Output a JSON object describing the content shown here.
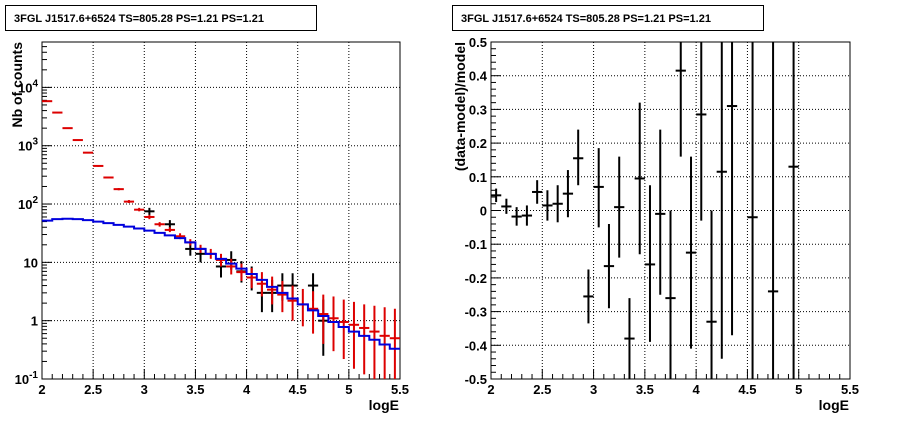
{
  "chart_data": [
    {
      "type": "line",
      "title": "3FGL J1517.6+6524 TS=805.28 PS=1.21 PS=1.21",
      "xlabel": "logE",
      "ylabel": "Nb of counts",
      "xlim": [
        2,
        5.5
      ],
      "ylim": [
        0.1,
        60000
      ],
      "log_y": true,
      "grid": true,
      "x_ticks": [
        "2",
        "2.5",
        "3",
        "3.5",
        "4",
        "4.5",
        "5",
        "5.5"
      ],
      "y_ticks": [
        {
          "v": 0.1,
          "t": "10",
          "s": "-1"
        },
        {
          "v": 1,
          "t": "1",
          "s": ""
        },
        {
          "v": 10,
          "t": "10",
          "s": ""
        },
        {
          "v": 100,
          "t": "10",
          "s": "2"
        },
        {
          "v": 1000,
          "t": "10",
          "s": "3"
        },
        {
          "v": 10000,
          "t": "10",
          "s": "4"
        }
      ],
      "bin_width": 0.1,
      "series": [
        {
          "color": "#000000",
          "style": "errorbar",
          "points": [
            [
              3.05,
              75,
              65,
              86
            ],
            [
              3.25,
              45,
              38,
              53
            ],
            [
              3.45,
              17,
              13,
              22
            ],
            [
              3.55,
              14,
              10,
              18.5
            ],
            [
              3.75,
              8.5,
              5.5,
              12.5
            ],
            [
              3.85,
              11,
              7.5,
              15.5
            ],
            [
              3.95,
              7,
              4.5,
              10.5
            ],
            [
              4.05,
              5.5,
              3.3,
              8.5
            ],
            [
              4.15,
              3,
              1.4,
              5
            ],
            [
              4.25,
              3,
              1.4,
              5
            ],
            [
              4.35,
              4,
              2.2,
              6.5
            ],
            [
              4.45,
              4,
              2.2,
              6.5
            ],
            [
              4.65,
              4,
              2.2,
              6.5
            ],
            [
              4.75,
              1,
              0.25,
              2.3
            ]
          ]
        },
        {
          "color": "#dd0000",
          "style": "errorbar",
          "points": [
            [
              2.05,
              5800,
              5700,
              5900
            ],
            [
              2.15,
              3700,
              3650,
              3750
            ],
            [
              2.25,
              2000,
              1970,
              2030
            ],
            [
              2.35,
              1250,
              1220,
              1280
            ],
            [
              2.45,
              760,
              740,
              780
            ],
            [
              2.55,
              450,
              435,
              465
            ],
            [
              2.65,
              285,
              275,
              295
            ],
            [
              2.75,
              180,
              172,
              188
            ],
            [
              2.85,
              110,
              104,
              117
            ],
            [
              2.95,
              80,
              75,
              86
            ],
            [
              3.05,
              60,
              55,
              65
            ],
            [
              3.15,
              45,
              41,
              49
            ],
            [
              3.25,
              36,
              33,
              40
            ],
            [
              3.35,
              28,
              25,
              31.5
            ],
            [
              3.45,
              22,
              19.5,
              25
            ],
            [
              3.55,
              17,
              14.5,
              20
            ],
            [
              3.65,
              14,
              11.5,
              17
            ],
            [
              3.75,
              11,
              8.5,
              14
            ],
            [
              3.85,
              8.5,
              6.2,
              11.5
            ],
            [
              3.95,
              6.8,
              4.8,
              9.5
            ],
            [
              4.05,
              5.5,
              3.6,
              8
            ],
            [
              4.15,
              4.3,
              2.6,
              6.8
            ],
            [
              4.25,
              3.4,
              1.9,
              5.7
            ],
            [
              4.35,
              2.8,
              1.4,
              4.8
            ],
            [
              4.45,
              2.2,
              1.0,
              4.0
            ],
            [
              4.55,
              1.9,
              0.8,
              3.5
            ],
            [
              4.65,
              1.6,
              0.6,
              3.2
            ],
            [
              4.75,
              1.3,
              0.4,
              2.8
            ],
            [
              4.85,
              1.1,
              0.3,
              2.6
            ],
            [
              4.95,
              0.95,
              0.22,
              2.3
            ],
            [
              5.05,
              0.85,
              0.15,
              2.1
            ],
            [
              5.15,
              0.75,
              0.12,
              1.9
            ],
            [
              5.25,
              0.65,
              0.1,
              1.8
            ],
            [
              5.35,
              0.55,
              0.1,
              1.7
            ],
            [
              5.45,
              0.5,
              0.1,
              1.6
            ]
          ]
        },
        {
          "color": "#0000dd",
          "style": "step",
          "edges": [
            2.0,
            2.1,
            2.2,
            2.3,
            2.4,
            2.5,
            2.6,
            2.7,
            2.8,
            2.9,
            3.0,
            3.1,
            3.2,
            3.3,
            3.4,
            3.5,
            3.6,
            3.7,
            3.8,
            3.9,
            4.0,
            4.1,
            4.2,
            4.3,
            4.4,
            4.5,
            4.6,
            4.7,
            4.8,
            4.9,
            5.0,
            5.1,
            5.2,
            5.3,
            5.4,
            5.5
          ],
          "values": [
            52,
            55,
            56,
            55,
            53,
            50,
            47,
            44,
            41,
            38,
            35,
            32,
            29,
            26,
            22,
            17,
            14,
            11.5,
            9.5,
            7.8,
            6.3,
            5.0,
            3.8,
            3.0,
            2.4,
            1.9,
            1.5,
            1.2,
            0.95,
            0.78,
            0.65,
            0.55,
            0.47,
            0.39,
            0.33
          ]
        }
      ]
    },
    {
      "type": "scatter",
      "title": "3FGL J1517.6+6524 TS=805.28 PS=1.21 PS=1.21",
      "xlabel": "logE",
      "ylabel": "(data-model)/model",
      "xlim": [
        2,
        5.5
      ],
      "ylim": [
        -0.5,
        0.5
      ],
      "grid": true,
      "x_ticks": [
        "2",
        "2.5",
        "3",
        "3.5",
        "4",
        "4.5",
        "5",
        "5.5"
      ],
      "y_ticks": [
        "-0.5",
        "-0.4",
        "-0.3",
        "-0.2",
        "-0.1",
        "0",
        "0.1",
        "0.2",
        "0.3",
        "0.4",
        "0.5"
      ],
      "bin_width": 0.1,
      "series": [
        {
          "color": "#000000",
          "style": "errorbar",
          "points": [
            [
              2.05,
              0.045,
              0.025,
              0.065
            ],
            [
              2.15,
              0.012,
              -0.01,
              0.035
            ],
            [
              2.25,
              -0.018,
              -0.045,
              0.01
            ],
            [
              2.35,
              -0.015,
              -0.045,
              0.015
            ],
            [
              2.45,
              0.055,
              0.02,
              0.09
            ],
            [
              2.55,
              0.015,
              -0.03,
              0.06
            ],
            [
              2.65,
              0.02,
              -0.035,
              0.075
            ],
            [
              2.75,
              0.05,
              -0.02,
              0.12
            ],
            [
              2.85,
              0.155,
              0.075,
              0.24
            ],
            [
              2.95,
              -0.255,
              -0.335,
              -0.175
            ],
            [
              3.05,
              0.07,
              -0.05,
              0.185
            ],
            [
              3.15,
              -0.165,
              -0.29,
              -0.04
            ],
            [
              3.25,
              0.01,
              -0.14,
              0.16
            ],
            [
              3.35,
              -0.38,
              -0.5,
              -0.26
            ],
            [
              3.45,
              0.095,
              -0.13,
              0.32
            ],
            [
              3.55,
              -0.16,
              -0.39,
              0.075
            ],
            [
              3.65,
              -0.01,
              -0.25,
              0.24
            ],
            [
              3.75,
              -0.26,
              -0.5,
              0.0
            ],
            [
              3.85,
              0.415,
              0.16,
              0.5
            ],
            [
              3.95,
              -0.125,
              -0.41,
              0.16
            ],
            [
              4.05,
              0.285,
              -0.03,
              0.5
            ],
            [
              4.15,
              -0.33,
              -0.5,
              0.0
            ],
            [
              4.25,
              0.115,
              -0.44,
              0.5
            ],
            [
              4.35,
              0.31,
              -0.37,
              0.5
            ],
            [
              4.55,
              -0.02,
              -0.5,
              0.5
            ],
            [
              4.75,
              -0.24,
              -0.5,
              0.5
            ],
            [
              4.95,
              0.13,
              -0.5,
              0.5
            ]
          ]
        }
      ]
    }
  ]
}
